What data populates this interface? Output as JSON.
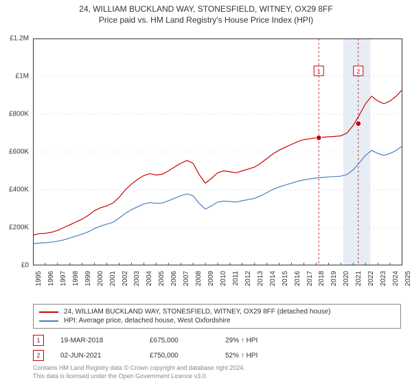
{
  "title": {
    "main": "24, WILLIAM BUCKLAND WAY, STONESFIELD, WITNEY, OX29 8FF",
    "sub": "Price paid vs. HM Land Registry's House Price Index (HPI)"
  },
  "chart": {
    "type": "line",
    "background_color": "#ffffff",
    "plot_border_color": "#333333",
    "grid_color": "#cccccc",
    "grid_dash": "2,3",
    "title_fontsize": 12,
    "label_fontsize": 10,
    "x_axis": {
      "min": 1995,
      "max": 2025,
      "ticks": [
        1995,
        1996,
        1997,
        1998,
        1999,
        2000,
        2001,
        2002,
        2003,
        2004,
        2005,
        2006,
        2007,
        2008,
        2009,
        2010,
        2011,
        2012,
        2013,
        2014,
        2015,
        2016,
        2017,
        2018,
        2019,
        2020,
        2021,
        2022,
        2023,
        2024,
        2025
      ]
    },
    "y_axis": {
      "min": 0,
      "max": 1200000,
      "ticks": [
        {
          "v": 0,
          "label": "£0"
        },
        {
          "v": 200000,
          "label": "£200K"
        },
        {
          "v": 400000,
          "label": "£400K"
        },
        {
          "v": 600000,
          "label": "£600K"
        },
        {
          "v": 800000,
          "label": "£800K"
        },
        {
          "v": 1000000,
          "label": "£1M"
        },
        {
          "v": 1200000,
          "label": "£1.2M"
        }
      ]
    },
    "series": [
      {
        "name": "property",
        "label": "24, WILLIAM BUCKLAND WAY, STONESFIELD, WITNEY, OX29 8FF (detached house)",
        "color": "#cc0000",
        "line_width": 1.2,
        "points": [
          [
            1995,
            160000
          ],
          [
            1995.5,
            168000
          ],
          [
            1996,
            170000
          ],
          [
            1996.5,
            175000
          ],
          [
            1997,
            185000
          ],
          [
            1997.5,
            200000
          ],
          [
            1998,
            215000
          ],
          [
            1998.5,
            230000
          ],
          [
            1999,
            245000
          ],
          [
            1999.5,
            265000
          ],
          [
            2000,
            290000
          ],
          [
            2000.5,
            305000
          ],
          [
            2001,
            315000
          ],
          [
            2001.5,
            330000
          ],
          [
            2002,
            360000
          ],
          [
            2002.5,
            400000
          ],
          [
            2003,
            430000
          ],
          [
            2003.5,
            455000
          ],
          [
            2004,
            475000
          ],
          [
            2004.5,
            485000
          ],
          [
            2005,
            478000
          ],
          [
            2005.5,
            482000
          ],
          [
            2006,
            500000
          ],
          [
            2006.5,
            520000
          ],
          [
            2007,
            540000
          ],
          [
            2007.5,
            555000
          ],
          [
            2008,
            540000
          ],
          [
            2008.5,
            480000
          ],
          [
            2009,
            435000
          ],
          [
            2009.5,
            460000
          ],
          [
            2010,
            490000
          ],
          [
            2010.5,
            500000
          ],
          [
            2011,
            495000
          ],
          [
            2011.5,
            490000
          ],
          [
            2012,
            500000
          ],
          [
            2012.5,
            510000
          ],
          [
            2013,
            520000
          ],
          [
            2013.5,
            540000
          ],
          [
            2014,
            565000
          ],
          [
            2014.5,
            590000
          ],
          [
            2015,
            610000
          ],
          [
            2015.5,
            625000
          ],
          [
            2016,
            640000
          ],
          [
            2016.5,
            655000
          ],
          [
            2017,
            665000
          ],
          [
            2017.5,
            670000
          ],
          [
            2018,
            675000
          ],
          [
            2018.5,
            678000
          ],
          [
            2019,
            680000
          ],
          [
            2019.5,
            682000
          ],
          [
            2020,
            685000
          ],
          [
            2020.5,
            700000
          ],
          [
            2021,
            740000
          ],
          [
            2021.5,
            795000
          ],
          [
            2022,
            855000
          ],
          [
            2022.5,
            895000
          ],
          [
            2023,
            870000
          ],
          [
            2023.5,
            855000
          ],
          [
            2024,
            870000
          ],
          [
            2024.5,
            895000
          ],
          [
            2025,
            930000
          ]
        ]
      },
      {
        "name": "hpi",
        "label": "HPI: Average price, detached house, West Oxfordshire",
        "color": "#4a7ebb",
        "line_width": 1.2,
        "points": [
          [
            1995,
            115000
          ],
          [
            1995.5,
            118000
          ],
          [
            1996,
            120000
          ],
          [
            1996.5,
            123000
          ],
          [
            1997,
            128000
          ],
          [
            1997.5,
            135000
          ],
          [
            1998,
            145000
          ],
          [
            1998.5,
            155000
          ],
          [
            1999,
            165000
          ],
          [
            1999.5,
            178000
          ],
          [
            2000,
            195000
          ],
          [
            2000.5,
            208000
          ],
          [
            2001,
            218000
          ],
          [
            2001.5,
            228000
          ],
          [
            2002,
            250000
          ],
          [
            2002.5,
            275000
          ],
          [
            2003,
            295000
          ],
          [
            2003.5,
            310000
          ],
          [
            2004,
            325000
          ],
          [
            2004.5,
            332000
          ],
          [
            2005,
            328000
          ],
          [
            2005.5,
            330000
          ],
          [
            2006,
            342000
          ],
          [
            2006.5,
            355000
          ],
          [
            2007,
            368000
          ],
          [
            2007.5,
            378000
          ],
          [
            2008,
            368000
          ],
          [
            2008.5,
            328000
          ],
          [
            2009,
            298000
          ],
          [
            2009.5,
            315000
          ],
          [
            2010,
            335000
          ],
          [
            2010.5,
            340000
          ],
          [
            2011,
            338000
          ],
          [
            2011.5,
            335000
          ],
          [
            2012,
            342000
          ],
          [
            2012.5,
            348000
          ],
          [
            2013,
            355000
          ],
          [
            2013.5,
            368000
          ],
          [
            2014,
            385000
          ],
          [
            2014.5,
            402000
          ],
          [
            2015,
            415000
          ],
          [
            2015.5,
            425000
          ],
          [
            2016,
            435000
          ],
          [
            2016.5,
            445000
          ],
          [
            2017,
            452000
          ],
          [
            2017.5,
            458000
          ],
          [
            2018,
            462000
          ],
          [
            2018.5,
            465000
          ],
          [
            2019,
            468000
          ],
          [
            2019.5,
            470000
          ],
          [
            2020,
            472000
          ],
          [
            2020.5,
            480000
          ],
          [
            2021,
            505000
          ],
          [
            2021.5,
            542000
          ],
          [
            2022,
            582000
          ],
          [
            2022.5,
            608000
          ],
          [
            2023,
            592000
          ],
          [
            2023.5,
            582000
          ],
          [
            2024,
            592000
          ],
          [
            2024.5,
            608000
          ],
          [
            2025,
            632000
          ]
        ]
      }
    ],
    "sale_markers": [
      {
        "num": "1",
        "x": 2018.21,
        "y": 675000,
        "vline_color": "#cc0000"
      },
      {
        "num": "2",
        "x": 2021.42,
        "y": 750000,
        "vline_color": "#cc0000"
      }
    ],
    "highlight_band": {
      "from": 2020.2,
      "to": 2022.4,
      "color": "#dbe5f1",
      "opacity": 0.7
    },
    "marker_style": {
      "fill": "#cc0000",
      "stroke": "#ffffff",
      "radius": 4
    }
  },
  "sales": [
    {
      "num": "1",
      "date": "19-MAR-2018",
      "price": "£675,000",
      "hpi": "29% ↑ HPI"
    },
    {
      "num": "2",
      "date": "02-JUN-2021",
      "price": "£750,000",
      "hpi": "52% ↑ HPI"
    }
  ],
  "footer": {
    "line1": "Contains HM Land Registry data © Crown copyright and database right 2024.",
    "line2": "This data is licensed under the Open Government Licence v3.0."
  }
}
